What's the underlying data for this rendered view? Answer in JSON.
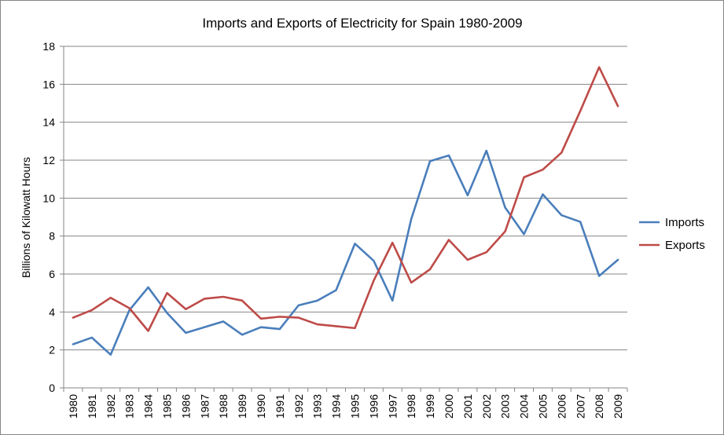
{
  "chart_data": {
    "type": "line",
    "title": "Imports and Exports of Electricity  for Spain 1980-2009",
    "xlabel": "",
    "ylabel": "Billions of Kilowatt Hours",
    "ylim": [
      0,
      18
    ],
    "yticks": [
      0,
      2,
      4,
      6,
      8,
      10,
      12,
      14,
      16,
      18
    ],
    "grid": true,
    "legend_position": "right",
    "categories": [
      "1980",
      "1981",
      "1982",
      "1983",
      "1984",
      "1985",
      "1986",
      "1987",
      "1988",
      "1989",
      "1990",
      "1991",
      "1992",
      "1993",
      "1994",
      "1995",
      "1996",
      "1997",
      "1998",
      "1999",
      "2000",
      "2001",
      "2002",
      "2003",
      "2004",
      "2005",
      "2006",
      "2007",
      "2008",
      "2009"
    ],
    "series": [
      {
        "name": "Imports",
        "color": "#4a7ebb",
        "values": [
          2.3,
          2.65,
          1.75,
          4.1,
          5.3,
          3.95,
          2.9,
          3.2,
          3.5,
          2.8,
          3.2,
          3.1,
          4.35,
          4.6,
          5.15,
          7.6,
          6.7,
          4.6,
          8.9,
          11.95,
          12.25,
          10.15,
          12.5,
          9.5,
          8.1,
          10.2,
          9.1,
          8.75,
          5.9,
          6.75
        ]
      },
      {
        "name": "Exports",
        "color": "#be4b48",
        "values": [
          3.7,
          4.1,
          4.75,
          4.2,
          3.0,
          5.0,
          4.15,
          4.7,
          4.8,
          4.6,
          3.65,
          3.75,
          3.7,
          3.35,
          3.25,
          3.15,
          5.65,
          7.65,
          5.55,
          6.25,
          7.8,
          6.75,
          7.15,
          8.25,
          11.1,
          11.5,
          12.4,
          14.6,
          16.9,
          14.85
        ]
      }
    ]
  }
}
